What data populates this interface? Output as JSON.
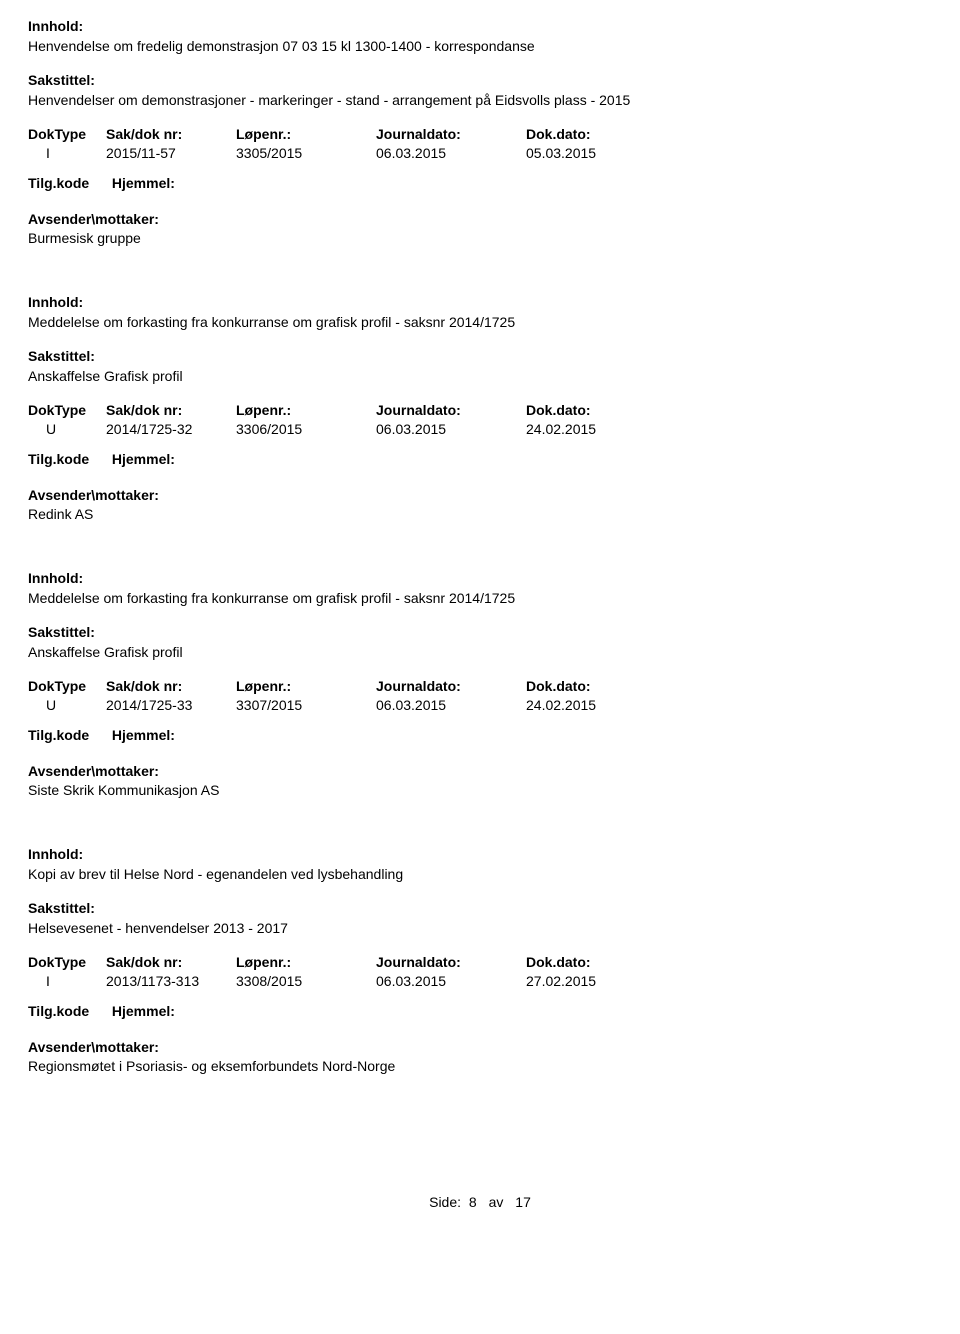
{
  "labels": {
    "innhold": "Innhold:",
    "sakstittel": "Sakstittel:",
    "doktype": "DokType",
    "saknr": "Sak/dok nr:",
    "lopenr": "Løpenr.:",
    "journaldato": "Journaldato:",
    "dokdato": "Dok.dato:",
    "tilgkode": "Tilg.kode",
    "hjemmel": "Hjemmel:",
    "avsender": "Avsender\\mottaker:"
  },
  "records": [
    {
      "innhold": "Henvendelse om fredelig demonstrasjon 07 03 15 kl 1300-1400 - korrespondanse",
      "sakstittel": "Henvendelser om demonstrasjoner - markeringer - stand - arrangement på Eidsvolls plass - 2015",
      "doktype": "I",
      "saknr": "2015/11-57",
      "lopenr": "3305/2015",
      "journaldato": "06.03.2015",
      "dokdato": "05.03.2015",
      "avsender": "Burmesisk gruppe"
    },
    {
      "innhold": "Meddelelse om forkasting fra konkurranse om grafisk profil - saksnr 2014/1725",
      "sakstittel": "Anskaffelse Grafisk profil",
      "doktype": "U",
      "saknr": "2014/1725-32",
      "lopenr": "3306/2015",
      "journaldato": "06.03.2015",
      "dokdato": "24.02.2015",
      "avsender": "Redink AS"
    },
    {
      "innhold": "Meddelelse om forkasting fra konkurranse om grafisk profil - saksnr 2014/1725",
      "sakstittel": "Anskaffelse Grafisk profil",
      "doktype": "U",
      "saknr": "2014/1725-33",
      "lopenr": "3307/2015",
      "journaldato": "06.03.2015",
      "dokdato": "24.02.2015",
      "avsender": "Siste Skrik Kommunikasjon AS"
    },
    {
      "innhold": "Kopi av brev til Helse Nord - egenandelen ved lysbehandling",
      "sakstittel": "Helsevesenet - henvendelser 2013 - 2017",
      "doktype": "I",
      "saknr": "2013/1173-313",
      "lopenr": "3308/2015",
      "journaldato": "06.03.2015",
      "dokdato": "27.02.2015",
      "avsender": "Regionsmøtet i Psoriasis- og eksemforbundets Nord-Norge"
    }
  ],
  "footer": {
    "label": "Side:",
    "page": "8",
    "of": "av",
    "total": "17"
  }
}
